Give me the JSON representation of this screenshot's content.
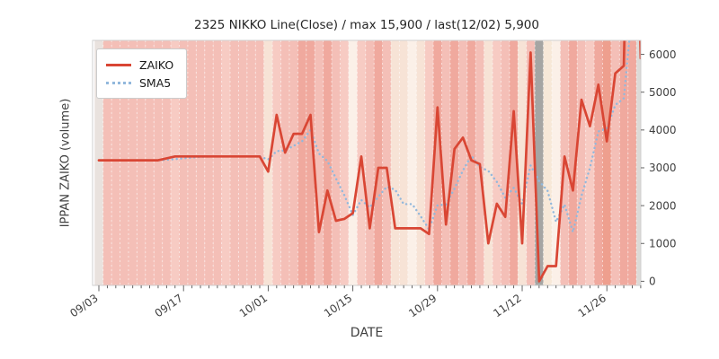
{
  "figure": {
    "title": "2325 NIKKO Line(Close) / max 15,900 / last(12/02) 5,900",
    "xlabel": "DATE",
    "ylabel": "IPPAN ZAIKO (volume)",
    "legend": {
      "zaiko_label": "ZAIKO",
      "sma_label": "SMA5"
    }
  },
  "colors": {
    "zaiko_line": "#d94634",
    "sma_line": "#92b8dc",
    "plot_border": "#cfcfcf",
    "tick_color": "#555555",
    "tick_label_color": "#3f3f3f",
    "title_color": "#262626",
    "grid_dash_color": "rgba(255,255,255,0.55)"
  },
  "axes": {
    "y_ticks": [
      0,
      1000,
      2000,
      3000,
      4000,
      5000,
      6000
    ],
    "ylim": [
      -110,
      6370
    ],
    "x_major_ticks": [
      {
        "index": 0,
        "label": "09/03"
      },
      {
        "index": 10,
        "label": "09/17"
      },
      {
        "index": 20,
        "label": "10/01"
      },
      {
        "index": 30,
        "label": "10/15"
      },
      {
        "index": 40,
        "label": "10/29"
      },
      {
        "index": 50,
        "label": "11/12"
      },
      {
        "index": 60,
        "label": "11/26"
      }
    ]
  },
  "chart_data": {
    "type": "line",
    "x": [
      "09/03",
      "09/04",
      "09/05",
      "09/06",
      "09/09",
      "09/10",
      "09/11",
      "09/12",
      "09/13",
      "09/16",
      "09/17",
      "09/18",
      "09/19",
      "09/20",
      "09/23",
      "09/24",
      "09/25",
      "09/26",
      "09/27",
      "09/30",
      "10/01",
      "10/02",
      "10/03",
      "10/04",
      "10/07",
      "10/08",
      "10/09",
      "10/10",
      "10/11",
      "10/14",
      "10/15",
      "10/16",
      "10/17",
      "10/18",
      "10/21",
      "10/22",
      "10/23",
      "10/24",
      "10/25",
      "10/28",
      "10/29",
      "10/30",
      "10/31",
      "11/01",
      "11/04",
      "11/05",
      "11/06",
      "11/07",
      "11/08",
      "11/11",
      "11/12",
      "11/13",
      "11/14",
      "11/15",
      "11/18",
      "11/19",
      "11/20",
      "11/21",
      "11/22",
      "11/25",
      "11/26",
      "11/27",
      "11/28",
      "11/29",
      "12/02"
    ],
    "series": [
      {
        "name": "ZAIKO",
        "style": "solid",
        "color": "#d94634",
        "values": [
          3200,
          3200,
          3200,
          3200,
          3200,
          3200,
          3200,
          3200,
          3250,
          3300,
          3300,
          3300,
          3300,
          3300,
          3300,
          3300,
          3300,
          3300,
          3300,
          3300,
          2900,
          4400,
          3400,
          3900,
          3900,
          4400,
          1300,
          2400,
          1600,
          1650,
          1800,
          3300,
          1400,
          3000,
          3000,
          1400,
          1400,
          1400,
          1400,
          1250,
          4600,
          1500,
          3500,
          3800,
          3200,
          3100,
          1000,
          2050,
          1700,
          4500,
          1000,
          6050,
          0,
          400,
          400,
          3300,
          2400,
          4800,
          4100,
          5200,
          3700,
          5500,
          5700,
          15900,
          5900
        ]
      },
      {
        "name": "SMA5",
        "style": "dotted",
        "color": "#92b8dc",
        "derived": "sma",
        "window": 5
      }
    ],
    "background_bands": [
      "#e9e2de",
      "#f4bfb7",
      "#f4bfb7",
      "#f4bfb7",
      "#f4bfb7",
      "#f4bfb7",
      "#f4bfb7",
      "#f4bfb7",
      "#f4bfb7",
      "#f7cbc3",
      "#f4bfb7",
      "#f4bfb7",
      "#f4bfb7",
      "#f4bfb7",
      "#f4bfb7",
      "#f7cbc3",
      "#f4bfb7",
      "#f4bfb7",
      "#f4bfb7",
      "#f4bfb7",
      "#f7e3d6",
      "#f7cbc3",
      "#f4bfb7",
      "#f4bfb7",
      "#f0a99e",
      "#f0a99e",
      "#f4bfb7",
      "#f0a99e",
      "#f4bfb7",
      "#f7cbc3",
      "#fbf0e8",
      "#f7cbc3",
      "#f4bfb7",
      "#f0a99e",
      "#f4bfb7",
      "#f7e3d6",
      "#f7e3d6",
      "#fbf0e8",
      "#f7e3d6",
      "#f7cbc3",
      "#f0a99e",
      "#f4bfb7",
      "#f0a99e",
      "#f4bfb7",
      "#f0a99e",
      "#f4bfb7",
      "#f7e3d6",
      "#f7cbc3",
      "#f4bfb7",
      "#f0a99e",
      "#f7e3d6",
      "#f4bfb7",
      "#a5a5a3",
      "#f7e8d8",
      "#fbf0e8",
      "#f4bfb7",
      "#f0a99e",
      "#f4bfb7",
      "#f7cbc3",
      "#f0a99e",
      "#ee9f8e",
      "#f4bfb7",
      "#f0a99e",
      "#f0a99e",
      "#dcdad7"
    ]
  }
}
